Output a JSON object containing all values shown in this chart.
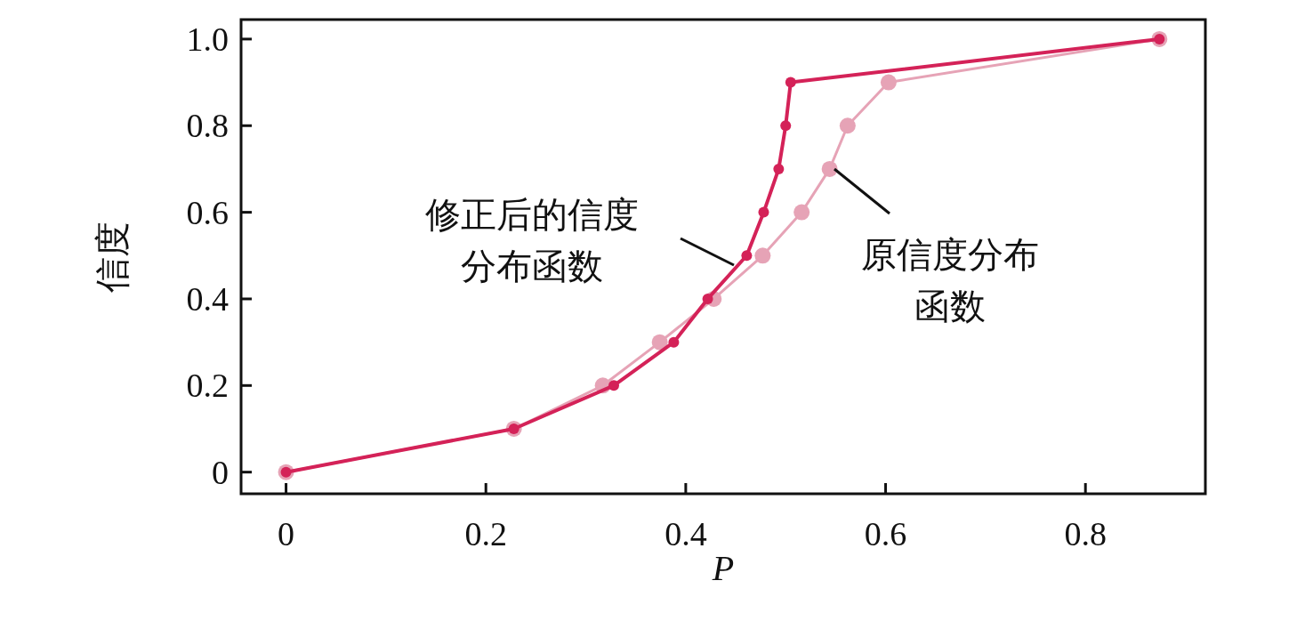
{
  "chart_data": {
    "type": "line",
    "xlabel": "P",
    "ylabel": "信度",
    "xlim": [
      -0.045,
      0.92
    ],
    "ylim": [
      -0.05,
      1.045
    ],
    "xticks": [
      0,
      0.2,
      0.4,
      0.6,
      0.8
    ],
    "yticks": [
      0,
      0.2,
      0.4,
      0.6,
      0.8,
      {
        "value": 1.0,
        "label": "1.0"
      }
    ],
    "marker": "circle",
    "grid": false,
    "series": [
      {
        "name": "原信度分布函数",
        "color": "#e6a3b6",
        "x": [
          0,
          0.228,
          0.317,
          0.374,
          0.428,
          0.477,
          0.516,
          0.544,
          0.562,
          0.603,
          0.874
        ],
        "values": [
          0,
          0.1,
          0.2,
          0.3,
          0.4,
          0.5,
          0.6,
          0.7,
          0.8,
          0.9,
          1.0
        ]
      },
      {
        "name": "修正后的信度分布函数",
        "color": "#d42258",
        "x": [
          0,
          0.228,
          0.328,
          0.388,
          0.422,
          0.461,
          0.478,
          0.493,
          0.5,
          0.505,
          0.874
        ],
        "values": [
          0,
          0.1,
          0.2,
          0.3,
          0.4,
          0.5,
          0.6,
          0.7,
          0.8,
          0.9,
          1.0
        ]
      }
    ]
  }
}
